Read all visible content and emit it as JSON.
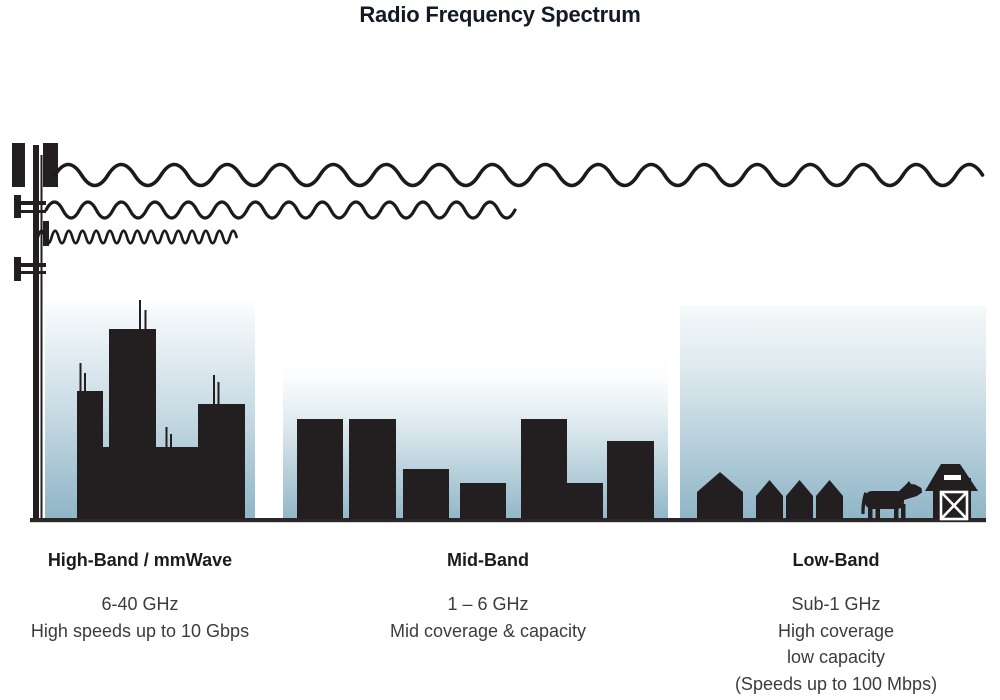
{
  "title": "Radio Frequency Spectrum",
  "colors": {
    "ink": "#231f20",
    "sky_gradient_top": "#ffffff",
    "sky_gradient_bottom": "#8fb5c7",
    "heading_text": "#1c1c1a",
    "body_text": "#3c3c3c"
  },
  "icons": [
    "cell-tower-icon",
    "low-band-wave-icon",
    "mid-band-wave-icon",
    "high-band-wave-icon",
    "city-skyline-icon",
    "town-buildings-icon",
    "village-houses-icon",
    "cow-icon",
    "barn-icon"
  ],
  "bands": [
    {
      "id": "high-band",
      "heading": "High-Band / mmWave",
      "lines": [
        "6-40 GHz",
        "High speeds up to 10 Gbps"
      ]
    },
    {
      "id": "mid-band",
      "heading": "Mid-Band",
      "lines": [
        "1 – 6 GHz",
        "Mid coverage & capacity"
      ]
    },
    {
      "id": "low-band",
      "heading": "Low-Band",
      "lines": [
        "Sub-1 GHz",
        "High coverage",
        "low capacity",
        "(Speeds up to 100 Mbps)"
      ]
    }
  ]
}
